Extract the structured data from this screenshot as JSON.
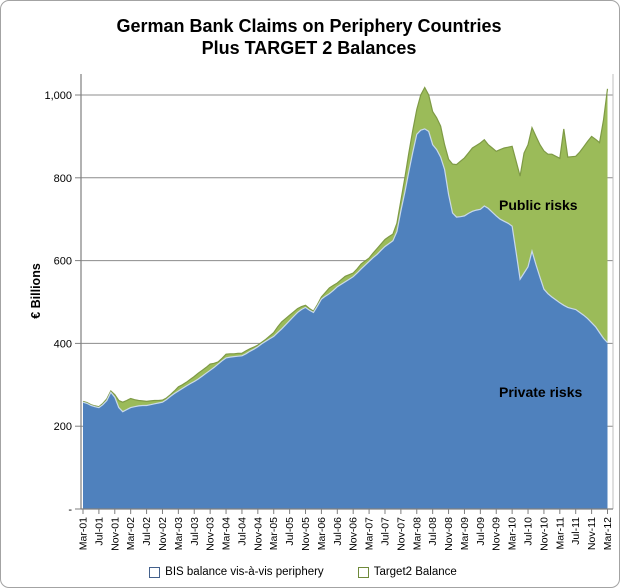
{
  "header": {
    "title_line1": "German Bank Claims on Periphery Countries",
    "title_line2": "Plus TARGET 2 Balances"
  },
  "annotations": {
    "public": "Public risks",
    "private": "Private risks"
  },
  "legend": {
    "items": [
      {
        "label": "BIS balance vis-à-vis periphery",
        "color": "#4F81BD"
      },
      {
        "label": "Target2 Balance",
        "color": "#9BBB59"
      }
    ]
  },
  "colors": {
    "blue_area": "#4F81BD",
    "blue_edge": "#c9d9ec",
    "green_area": "#9BBB59",
    "green_edge": "#7e9a45",
    "gridline": "#8c8c8c",
    "axis": "#7f7f7f",
    "plot_border": "#bfbfbf",
    "text": "#000000"
  },
  "chart_data": {
    "type": "area",
    "stacked": true,
    "title": "German Bank Claims on Periphery Countries Plus TARGET 2 Balances",
    "ylabel": "€ Billions",
    "ylim": [
      0,
      1000
    ],
    "grid": "horizontal",
    "legend_position": "bottom",
    "x_frequency": "monthly",
    "x_start": "Mar-01",
    "x_end": "Mar-12",
    "y_ticks": [
      {
        "value": 0,
        "label": "-"
      },
      {
        "value": 200,
        "label": "200"
      },
      {
        "value": 400,
        "label": "400"
      },
      {
        "value": 600,
        "label": "600"
      },
      {
        "value": 800,
        "label": "800"
      },
      {
        "value": 1000,
        "label": "1,000"
      }
    ],
    "x_tick_labels": [
      "Mar-01",
      "Jul-01",
      "Nov-01",
      "Mar-02",
      "Jul-02",
      "Nov-02",
      "Mar-03",
      "Jul-03",
      "Nov-03",
      "Mar-04",
      "Jul-04",
      "Nov-04",
      "Mar-05",
      "Jul-05",
      "Nov-05",
      "Mar-06",
      "Jul-06",
      "Nov-06",
      "Mar-07",
      "Jul-07",
      "Nov-07",
      "Mar-08",
      "Jul-08",
      "Nov-08",
      "Mar-09",
      "Jul-09",
      "Nov-09",
      "Mar-10",
      "Jul-10",
      "Nov-10",
      "Mar-11",
      "Jul-11",
      "Nov-11",
      "Mar-12"
    ],
    "x_tick_label_step_months": 4,
    "series": [
      {
        "name": "BIS balance vis-à-vis periphery",
        "color": "#4F81BD",
        "values": [
          258,
          255,
          250,
          247,
          245,
          252,
          262,
          282,
          270,
          245,
          235,
          240,
          245,
          247,
          249,
          250,
          250,
          252,
          254,
          256,
          258,
          264,
          272,
          279,
          285,
          291,
          297,
          303,
          308,
          314,
          321,
          328,
          335,
          342,
          350,
          358,
          365,
          367,
          368,
          369,
          370,
          375,
          381,
          386,
          392,
          399,
          405,
          411,
          417,
          426,
          435,
          445,
          455,
          465,
          475,
          482,
          487,
          480,
          475,
          490,
          507,
          514,
          520,
          528,
          537,
          543,
          549,
          555,
          561,
          570,
          580,
          589,
          598,
          607,
          615,
          625,
          634,
          641,
          648,
          670,
          720,
          765,
          815,
          862,
          905,
          915,
          918,
          912,
          880,
          868,
          850,
          820,
          760,
          715,
          705,
          706,
          708,
          714,
          719,
          722,
          724,
          732,
          726,
          717,
          708,
          700,
          695,
          690,
          683,
          620,
          555,
          570,
          585,
          623,
          590,
          560,
          531,
          520,
          512,
          505,
          498,
          492,
          487,
          484,
          482,
          475,
          468,
          460,
          450,
          440,
          426,
          412,
          402
        ]
      },
      {
        "name": "Target2 Balance",
        "color": "#9BBB59",
        "values": [
          2,
          2,
          2,
          2,
          2,
          3,
          4,
          3,
          6,
          17,
          23,
          22,
          22,
          17,
          13,
          11,
          10,
          9,
          8,
          6,
          5,
          4,
          4,
          6,
          10,
          9,
          9,
          10,
          12,
          14,
          14,
          14,
          15,
          10,
          5,
          6,
          9,
          8,
          7,
          7,
          6,
          7,
          6,
          5,
          4,
          4,
          5,
          7,
          9,
          14,
          17,
          15,
          13,
          11,
          9,
          7,
          5,
          4,
          3,
          4,
          5,
          9,
          14,
          12,
          9,
          11,
          13,
          11,
          9,
          10,
          12,
          10,
          8,
          11,
          14,
          15,
          17,
          17,
          16,
          20,
          25,
          35,
          45,
          53,
          60,
          85,
          100,
          88,
          80,
          77,
          75,
          60,
          85,
          118,
          127,
          134,
          140,
          146,
          153,
          156,
          160,
          160,
          154,
          155,
          156,
          168,
          177,
          184,
          193,
          220,
          249,
          290,
          295,
          298,
          310,
          320,
          334,
          337,
          345,
          347,
          349,
          426,
          363,
          367,
          370,
          387,
          407,
          428,
          450,
          453,
          459,
          528,
          613
        ]
      }
    ]
  }
}
